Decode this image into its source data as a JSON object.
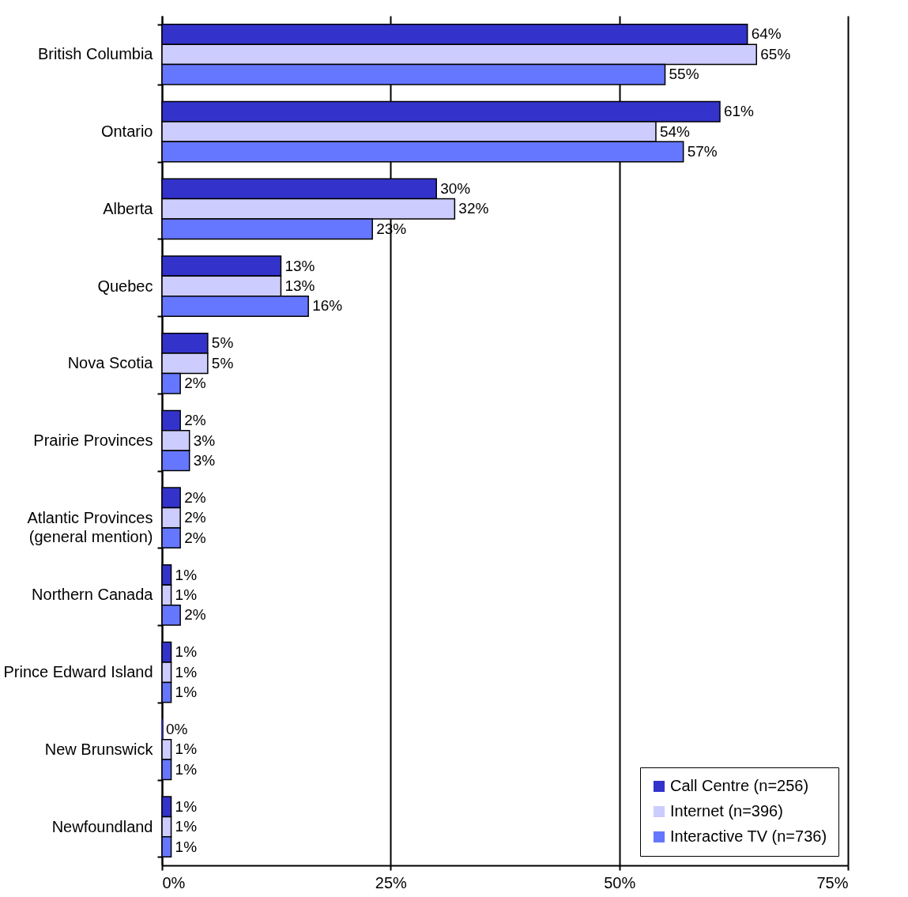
{
  "chart_data": {
    "type": "bar",
    "orientation": "horizontal",
    "categories": [
      "British Columbia",
      "Ontario",
      "Alberta",
      "Quebec",
      "Nova Scotia",
      "Prairie Provinces",
      "Atlantic Provinces (general mention)",
      "Northern Canada",
      "Prince Edward Island",
      "New Brunswick",
      "Newfoundland"
    ],
    "series": [
      {
        "name": "Call Centre (n=256)",
        "color": "#3333cc",
        "values": [
          64,
          61,
          30,
          13,
          5,
          2,
          2,
          1,
          1,
          0,
          1
        ],
        "value_labels": [
          "64%",
          "61%",
          "30%",
          "13%",
          "5%",
          "2%",
          "2%",
          "1%",
          "1%",
          "0%",
          "1%"
        ]
      },
      {
        "name": "Internet (n=396)",
        "color": "#ccccff",
        "values": [
          65,
          54,
          32,
          13,
          5,
          3,
          2,
          1,
          1,
          1,
          1
        ],
        "value_labels": [
          "65%",
          "54%",
          "32%",
          "13%",
          "5%",
          "3%",
          "2%",
          "1%",
          "1%",
          "1%",
          "1%"
        ]
      },
      {
        "name": "Interactive TV (n=736)",
        "color": "#6677ff",
        "values": [
          55,
          57,
          23,
          16,
          2,
          3,
          2,
          2,
          1,
          1,
          1
        ],
        "value_labels": [
          "55%",
          "57%",
          "23%",
          "16%",
          "2%",
          "3%",
          "2%",
          "2%",
          "1%",
          "1%",
          "1%"
        ]
      }
    ],
    "xlim": [
      0,
      75
    ],
    "xticks": [
      {
        "value": 0,
        "label": "0%"
      },
      {
        "value": 25,
        "label": "25%"
      },
      {
        "value": 50,
        "label": "50%"
      },
      {
        "value": 75,
        "label": "75%"
      }
    ],
    "grid": "x",
    "legend": "bottom right"
  }
}
